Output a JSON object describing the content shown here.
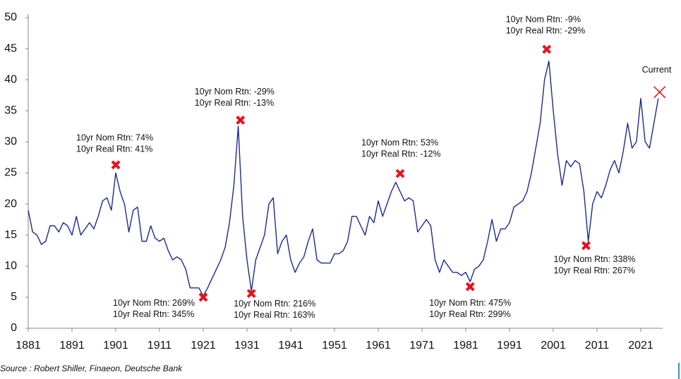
{
  "chart_data": {
    "type": "line",
    "color": "#1c2b8c",
    "x": [
      1881,
      1882,
      1883,
      1884,
      1885,
      1886,
      1887,
      1888,
      1889,
      1890,
      1891,
      1892,
      1893,
      1894,
      1895,
      1896,
      1897,
      1898,
      1899,
      1900,
      1901,
      1902,
      1903,
      1904,
      1905,
      1906,
      1907,
      1908,
      1909,
      1910,
      1911,
      1912,
      1913,
      1914,
      1915,
      1916,
      1917,
      1918,
      1919,
      1920,
      1921,
      1922,
      1923,
      1924,
      1925,
      1926,
      1927,
      1928,
      1929,
      1930,
      1931,
      1932,
      1933,
      1934,
      1935,
      1936,
      1937,
      1938,
      1939,
      1940,
      1941,
      1942,
      1943,
      1944,
      1945,
      1946,
      1947,
      1948,
      1949,
      1950,
      1951,
      1952,
      1953,
      1954,
      1955,
      1956,
      1957,
      1958,
      1959,
      1960,
      1961,
      1962,
      1963,
      1964,
      1965,
      1966,
      1967,
      1968,
      1969,
      1970,
      1971,
      1972,
      1973,
      1974,
      1975,
      1976,
      1977,
      1978,
      1979,
      1980,
      1981,
      1982,
      1983,
      1984,
      1985,
      1986,
      1987,
      1988,
      1989,
      1990,
      1991,
      1992,
      1993,
      1994,
      1995,
      1996,
      1997,
      1998,
      1999,
      2000,
      2001,
      2002,
      2003,
      2004,
      2005,
      2006,
      2007,
      2008,
      2009,
      2010,
      2011,
      2012,
      2013,
      2014,
      2015,
      2016,
      2017,
      2018,
      2019,
      2020,
      2021,
      2022,
      2023,
      2024,
      2025
    ],
    "values": [
      19,
      15.5,
      15,
      13.5,
      14,
      16.5,
      16.5,
      15.5,
      17,
      16.5,
      15,
      18,
      15,
      16,
      17,
      16,
      18,
      20.5,
      21,
      19,
      25,
      22,
      20,
      15.5,
      19,
      19.5,
      14,
      14,
      16.5,
      14.5,
      14,
      14.5,
      12.5,
      11,
      11.5,
      11,
      9.5,
      6.5,
      6.5,
      6.5,
      5.2,
      6.5,
      8,
      9.5,
      11,
      13,
      17,
      23,
      32.5,
      18,
      11,
      6,
      11,
      13,
      15,
      20,
      21,
      12,
      14,
      15,
      11,
      9,
      10.5,
      11.5,
      14,
      16,
      11,
      10.5,
      10.5,
      10.5,
      12,
      12,
      12.5,
      14,
      18,
      18,
      16.5,
      15,
      18,
      17,
      20.5,
      18,
      20,
      22,
      23.5,
      22,
      20.5,
      21,
      20.5,
      15.5,
      16.5,
      17.5,
      16.5,
      11,
      9,
      11,
      10,
      9,
      9,
      8.5,
      9,
      7.5,
      9.5,
      10,
      11,
      14,
      17.5,
      14,
      16,
      16,
      17,
      19.5,
      20,
      20.5,
      22,
      25,
      29,
      33,
      40,
      43,
      35,
      28,
      23,
      27,
      26,
      27,
      26.5,
      22,
      14,
      20,
      22,
      21,
      23,
      25.5,
      27,
      25,
      28.5,
      33,
      29,
      30,
      37,
      30,
      29,
      33,
      37
    ],
    "xlim": [
      1881,
      2026
    ],
    "xticks": [
      1881,
      1891,
      1901,
      1911,
      1921,
      1931,
      1941,
      1951,
      1961,
      1971,
      1981,
      1991,
      2001,
      2011,
      2021
    ],
    "ylim": [
      0,
      50
    ],
    "yticks": [
      0,
      5,
      10,
      15,
      20,
      25,
      30,
      35,
      40,
      45,
      50
    ],
    "grid": false,
    "annotations": [
      {
        "x": 1901,
        "y": 26.3,
        "marker": "bold",
        "text": [
          "10yr Nom Rtn: 74%",
          "10yr Real Rtn: 41%"
        ]
      },
      {
        "x": 1929.5,
        "y": 33.5,
        "marker": "bold",
        "text": [
          "10yr Nom Rtn: -29%",
          "10yr Real Rtn: -13%"
        ]
      },
      {
        "x": 1921,
        "y": 5,
        "marker": "bold",
        "text": [
          "10yr Nom Rtn: 269%",
          "10yr Real Rtn: 345%"
        ]
      },
      {
        "x": 1932,
        "y": 5.6,
        "marker": "bold",
        "text": [
          "10yr Nom Rtn: 216%",
          "10yr Real Rtn: 163%"
        ]
      },
      {
        "x": 1966,
        "y": 24.9,
        "marker": "bold",
        "text": [
          "10yr Nom Rtn: 53%",
          "10yr Real Rtn: -12%"
        ]
      },
      {
        "x": 1982,
        "y": 6.7,
        "marker": "bold",
        "text": [
          "10yr Nom Rtn: 475%",
          "10yr Real Rtn: 299%"
        ]
      },
      {
        "x": 1999.5,
        "y": 44.9,
        "marker": "bold",
        "text": [
          "10yr Nom Rtn: -9%",
          "10yr Real Rtn: -29%"
        ]
      },
      {
        "x": 2008.5,
        "y": 13.3,
        "marker": "bold",
        "text": [
          "10yr Nom Rtn: 338%",
          "10yr Real Rtn: 267%"
        ]
      },
      {
        "x": 2025.3,
        "y": 38,
        "marker": "thin",
        "text": [
          "Current"
        ]
      }
    ],
    "marker_color": "#e8111a",
    "source": "Source : Robert Shiller, Finaeon, Deutsche Bank"
  }
}
